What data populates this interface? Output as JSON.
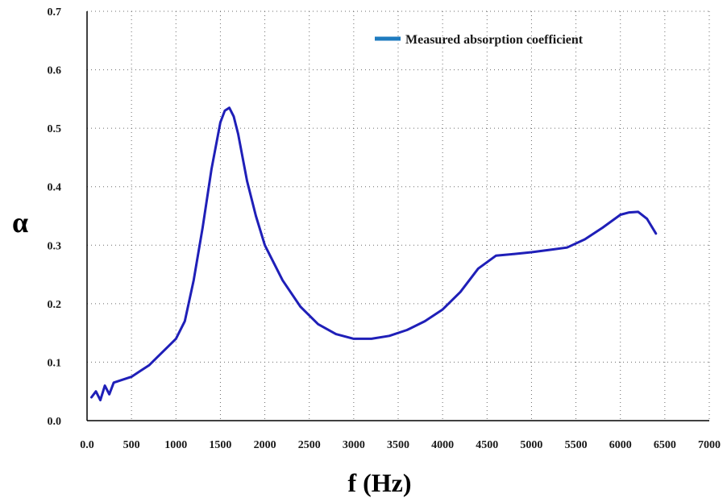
{
  "chart_data": {
    "type": "line",
    "xlabel": "f (Hz)",
    "ylabel": "α",
    "xlim": [
      0,
      7000
    ],
    "ylim": [
      0,
      0.7
    ],
    "x_ticks": [
      0,
      500,
      1000,
      1500,
      2000,
      2500,
      3000,
      3500,
      4000,
      4500,
      5000,
      5500,
      6000,
      6500,
      7000
    ],
    "x_tick_labels": [
      "0.0",
      "500",
      "1000",
      "1500",
      "2000",
      "2500",
      "3000",
      "3500",
      "4000",
      "4500",
      "5000",
      "5500",
      "6000",
      "6500",
      "7000"
    ],
    "y_ticks": [
      0,
      0.1,
      0.2,
      0.3,
      0.4,
      0.5,
      0.6,
      0.7
    ],
    "y_tick_labels": [
      "0.0",
      "0.1",
      "0.2",
      "0.3",
      "0.4",
      "0.5",
      "0.6",
      "0.7"
    ],
    "grid": "dotted",
    "legend_position": "top-right",
    "legend_color": "#1f7bbf",
    "series": [
      {
        "name": "Measured absorption coefficient",
        "color": "#1f1fb8",
        "x": [
          50,
          100,
          150,
          200,
          250,
          300,
          400,
          500,
          600,
          700,
          800,
          900,
          1000,
          1100,
          1200,
          1300,
          1400,
          1500,
          1550,
          1600,
          1650,
          1700,
          1800,
          1900,
          2000,
          2200,
          2400,
          2600,
          2800,
          3000,
          3200,
          3400,
          3600,
          3800,
          4000,
          4200,
          4400,
          4600,
          4800,
          5000,
          5200,
          5400,
          5600,
          5800,
          6000,
          6100,
          6200,
          6300,
          6400
        ],
        "y": [
          0.04,
          0.05,
          0.035,
          0.06,
          0.045,
          0.065,
          0.07,
          0.075,
          0.085,
          0.095,
          0.11,
          0.125,
          0.14,
          0.17,
          0.24,
          0.33,
          0.43,
          0.51,
          0.53,
          0.535,
          0.52,
          0.49,
          0.41,
          0.35,
          0.3,
          0.24,
          0.195,
          0.165,
          0.148,
          0.14,
          0.14,
          0.145,
          0.155,
          0.17,
          0.19,
          0.22,
          0.26,
          0.282,
          0.285,
          0.288,
          0.292,
          0.296,
          0.31,
          0.33,
          0.352,
          0.356,
          0.357,
          0.345,
          0.32
        ]
      }
    ]
  }
}
